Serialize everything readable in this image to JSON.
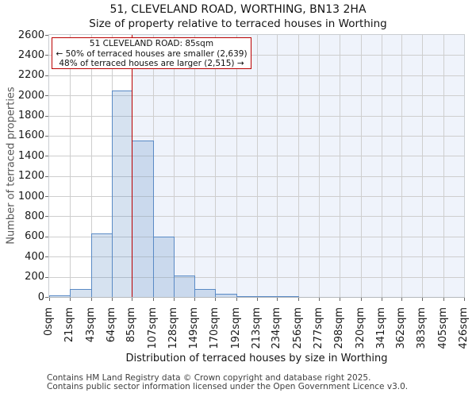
{
  "title": "51, CLEVELAND ROAD, WORTHING, BN13 2HA",
  "subtitle": "Size of property relative to terraced houses in Worthing",
  "annotation": {
    "line1": "51 CLEVELAND ROAD: 85sqm",
    "line2": "← 50% of terraced houses are smaller (2,639)",
    "line3": "48% of terraced houses are larger (2,515) →"
  },
  "footer": {
    "line1": "Contains HM Land Registry data © Crown copyright and database right 2025.",
    "line2": "Contains public sector information licensed under the Open Government Licence v3.0."
  },
  "chart_data": {
    "type": "bar",
    "title": "51, CLEVELAND ROAD, WORTHING, BN13 2HA — Size of property relative to terraced houses in Worthing",
    "xlabel": "Distribution of terraced houses by size in Worthing",
    "ylabel": "Number of terraced properties",
    "bin_edges_sqm": [
      0,
      21,
      43,
      64,
      85,
      107,
      128,
      149,
      170,
      192,
      213,
      234,
      256,
      277,
      298,
      320,
      341,
      362,
      383,
      405,
      426
    ],
    "x_tick_labels": [
      "0sqm",
      "21sqm",
      "43sqm",
      "64sqm",
      "85sqm",
      "107sqm",
      "128sqm",
      "149sqm",
      "170sqm",
      "192sqm",
      "213sqm",
      "234sqm",
      "256sqm",
      "277sqm",
      "298sqm",
      "320sqm",
      "341sqm",
      "362sqm",
      "383sqm",
      "405sqm",
      "426sqm"
    ],
    "values": [
      12,
      75,
      630,
      2050,
      1550,
      600,
      210,
      75,
      35,
      10,
      10,
      10,
      0,
      0,
      0,
      0,
      0,
      0,
      0,
      0
    ],
    "y_ticks": [
      0,
      200,
      400,
      600,
      800,
      1000,
      1200,
      1400,
      1600,
      1800,
      2000,
      2200,
      2400,
      2600
    ],
    "ylim": [
      0,
      2600
    ],
    "xlim_sqm": [
      0,
      426
    ],
    "grid": true,
    "legend": false,
    "marker": {
      "sqm": 85,
      "label": "85sqm"
    },
    "colors": {
      "bar_fill": "rgba(90,138,197,0.25)",
      "bar_edge": "#5a8ac5",
      "marker_line": "#bb0000",
      "annotation_border": "#bb0000",
      "gridline": "#cecece",
      "shade_right_of_marker": "#eff3fb"
    }
  }
}
